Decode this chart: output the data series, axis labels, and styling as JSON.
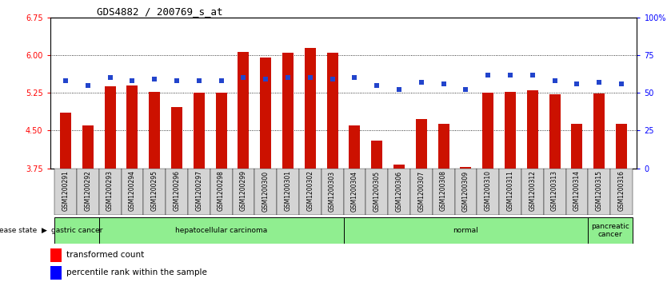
{
  "title": "GDS4882 / 200769_s_at",
  "samples": [
    "GSM1200291",
    "GSM1200292",
    "GSM1200293",
    "GSM1200294",
    "GSM1200295",
    "GSM1200296",
    "GSM1200297",
    "GSM1200298",
    "GSM1200299",
    "GSM1200300",
    "GSM1200301",
    "GSM1200302",
    "GSM1200303",
    "GSM1200304",
    "GSM1200305",
    "GSM1200306",
    "GSM1200307",
    "GSM1200308",
    "GSM1200309",
    "GSM1200310",
    "GSM1200311",
    "GSM1200312",
    "GSM1200313",
    "GSM1200314",
    "GSM1200315",
    "GSM1200316"
  ],
  "transformed_count": [
    4.85,
    4.6,
    5.38,
    5.4,
    5.27,
    4.97,
    5.25,
    5.25,
    6.07,
    5.95,
    6.04,
    6.15,
    6.04,
    4.6,
    4.3,
    3.83,
    4.73,
    4.63,
    3.77,
    5.25,
    5.27,
    5.3,
    5.22,
    4.63,
    5.23,
    4.63
  ],
  "percentile_rank": [
    58,
    55,
    60,
    58,
    59,
    58,
    58,
    58,
    60,
    59,
    60,
    60,
    59,
    60,
    55,
    52,
    57,
    56,
    52,
    62,
    62,
    62,
    58,
    56,
    57,
    56
  ],
  "groups": [
    {
      "label": "gastric cancer",
      "start": 0,
      "end": 2
    },
    {
      "label": "hepatocellular carcinoma",
      "start": 2,
      "end": 13
    },
    {
      "label": "normal",
      "start": 13,
      "end": 24
    },
    {
      "label": "pancreatic\ncancer",
      "start": 24,
      "end": 26
    }
  ],
  "ylim_left": [
    3.75,
    6.75
  ],
  "ylim_right": [
    0,
    100
  ],
  "yticks_left": [
    3.75,
    4.5,
    5.25,
    6.0,
    6.75
  ],
  "yticks_right": [
    0,
    25,
    50,
    75,
    100
  ],
  "ytick_labels_right": [
    "0",
    "25",
    "50",
    "75",
    "100%"
  ],
  "bar_color": "#CC1100",
  "dot_color": "#2244CC",
  "bar_width": 0.5,
  "green_color": "#90EE90",
  "grid_lines": [
    4.5,
    5.25,
    6.0
  ]
}
